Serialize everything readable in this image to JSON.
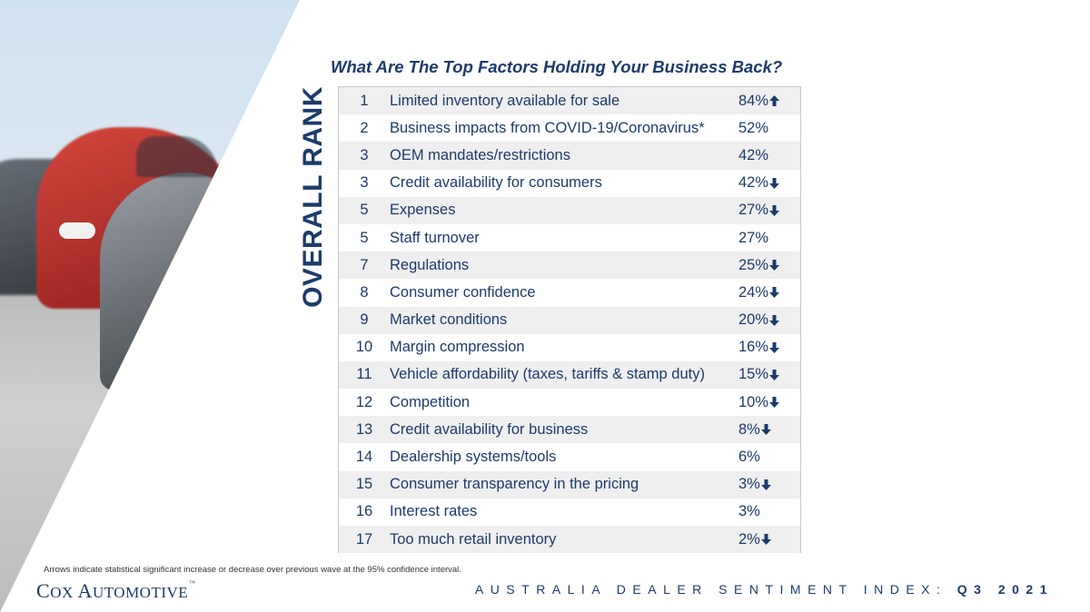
{
  "title": "What Are The Top Factors Holding Your Business Back?",
  "side_label": "OVERALL RANK",
  "rows": [
    {
      "rank": "1",
      "factor": "Limited inventory available for sale",
      "pct": "84%",
      "arrow": "up"
    },
    {
      "rank": "2",
      "factor": "Business impacts from COVID-19/Coronavirus*",
      "pct": "52%",
      "arrow": "none"
    },
    {
      "rank": "3",
      "factor": "OEM mandates/restrictions",
      "pct": "42%",
      "arrow": "none"
    },
    {
      "rank": "3",
      "factor": "Credit availability for consumers",
      "pct": "42%",
      "arrow": "down"
    },
    {
      "rank": "5",
      "factor": "Expenses",
      "pct": "27%",
      "arrow": "down"
    },
    {
      "rank": "5",
      "factor": "Staff turnover",
      "pct": "27%",
      "arrow": "none"
    },
    {
      "rank": "7",
      "factor": "Regulations",
      "pct": "25%",
      "arrow": "down"
    },
    {
      "rank": "8",
      "factor": "Consumer confidence",
      "pct": "24%",
      "arrow": "down"
    },
    {
      "rank": "9",
      "factor": "Market conditions",
      "pct": "20%",
      "arrow": "down"
    },
    {
      "rank": "10",
      "factor": "Margin compression",
      "pct": "16%",
      "arrow": "down"
    },
    {
      "rank": "11",
      "factor": "Vehicle affordability (taxes, tariffs & stamp duty)",
      "pct": "15%",
      "arrow": "down"
    },
    {
      "rank": "12",
      "factor": "Competition",
      "pct": "10%",
      "arrow": "down"
    },
    {
      "rank": "13",
      "factor": "Credit availability for business",
      "pct": "8%",
      "arrow": "down"
    },
    {
      "rank": "14",
      "factor": "Dealership systems/tools",
      "pct": "6%",
      "arrow": "none"
    },
    {
      "rank": "15",
      "factor": "Consumer transparency in the pricing",
      "pct": "3%",
      "arrow": "down"
    },
    {
      "rank": "16",
      "factor": "Interest rates",
      "pct": "3%",
      "arrow": "none"
    },
    {
      "rank": "17",
      "factor": "Too much retail inventory",
      "pct": "2%",
      "arrow": "down"
    }
  ],
  "footnote": "Arrows indicate statistical significant increase or decrease over previous wave at the 95% confidence interval.",
  "logo": {
    "text": "Cox Automotive",
    "tm": "™"
  },
  "footer": {
    "label": "AUSTRALIA DEALER SENTIMENT INDEX:",
    "period": "Q3 2021"
  },
  "colors": {
    "brand": "#1c3b6b",
    "row_alt": "#efefef"
  },
  "icons": {
    "up": "arrow-up-icon",
    "down": "arrow-down-icon"
  }
}
